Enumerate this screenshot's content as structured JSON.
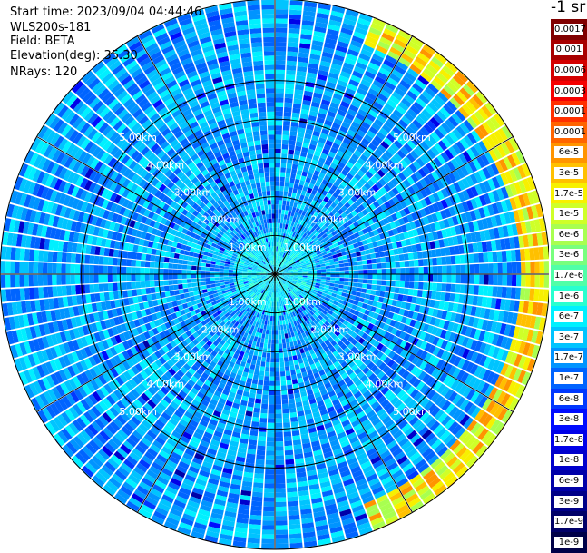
{
  "info": {
    "start_time": "Start time: 2023/09/04 04:44:46",
    "device": "WLS200s-181",
    "field": "Field: BETA",
    "elevation": "Elevation(deg): 35.30",
    "nrays": "NRays: 120"
  },
  "colorbar": {
    "unit": "-1 sr",
    "labels": [
      "0.0017",
      "0.001",
      "0.0006",
      "0.0003",
      "0.00017",
      "0.0001",
      "6e-5",
      "3e-5",
      "1.7e-5",
      "1e-5",
      "6e-6",
      "3e-6",
      "1.7e-6",
      "1e-6",
      "6e-7",
      "3e-7",
      "1.7e-7",
      "1e-7",
      "6e-8",
      "3e-8",
      "1.7e-8",
      "1e-8",
      "6e-9",
      "3e-9",
      "1.7e-9",
      "1e-9"
    ],
    "colors": [
      "#800000",
      "#a80000",
      "#d40000",
      "#f50000",
      "#ff3000",
      "#ff6400",
      "#ff9400",
      "#ffc000",
      "#f7f000",
      "#cfff28",
      "#a8ff50",
      "#78ff7e",
      "#50ffa8",
      "#28ffd0",
      "#00f0ff",
      "#00c4ff",
      "#0094ff",
      "#0064ff",
      "#0038ff",
      "#000cff",
      "#0000e8",
      "#0000cc",
      "#0000a8",
      "#000088",
      "#000068",
      "#000048"
    ]
  },
  "chart_data": {
    "type": "heatmap",
    "projection": "polar-ppi",
    "rays": 120,
    "range_rings_km": [
      1,
      2,
      3,
      4,
      5
    ],
    "range_ring_labels": [
      "1.00km",
      "2.00km",
      "3.00km",
      "4.00km",
      "5.00km"
    ],
    "max_range_km": 7.1,
    "spokes_every_deg": 30,
    "field": "BETA",
    "color_scale": "log",
    "value_range": [
      1e-09,
      0.0017
    ],
    "typical_value": 2e-07,
    "high_value_sector": {
      "from_deg_cw_north": 20,
      "to_deg_cw_north": 160,
      "beyond_km": 6.3,
      "value": 1.7e-05
    }
  }
}
